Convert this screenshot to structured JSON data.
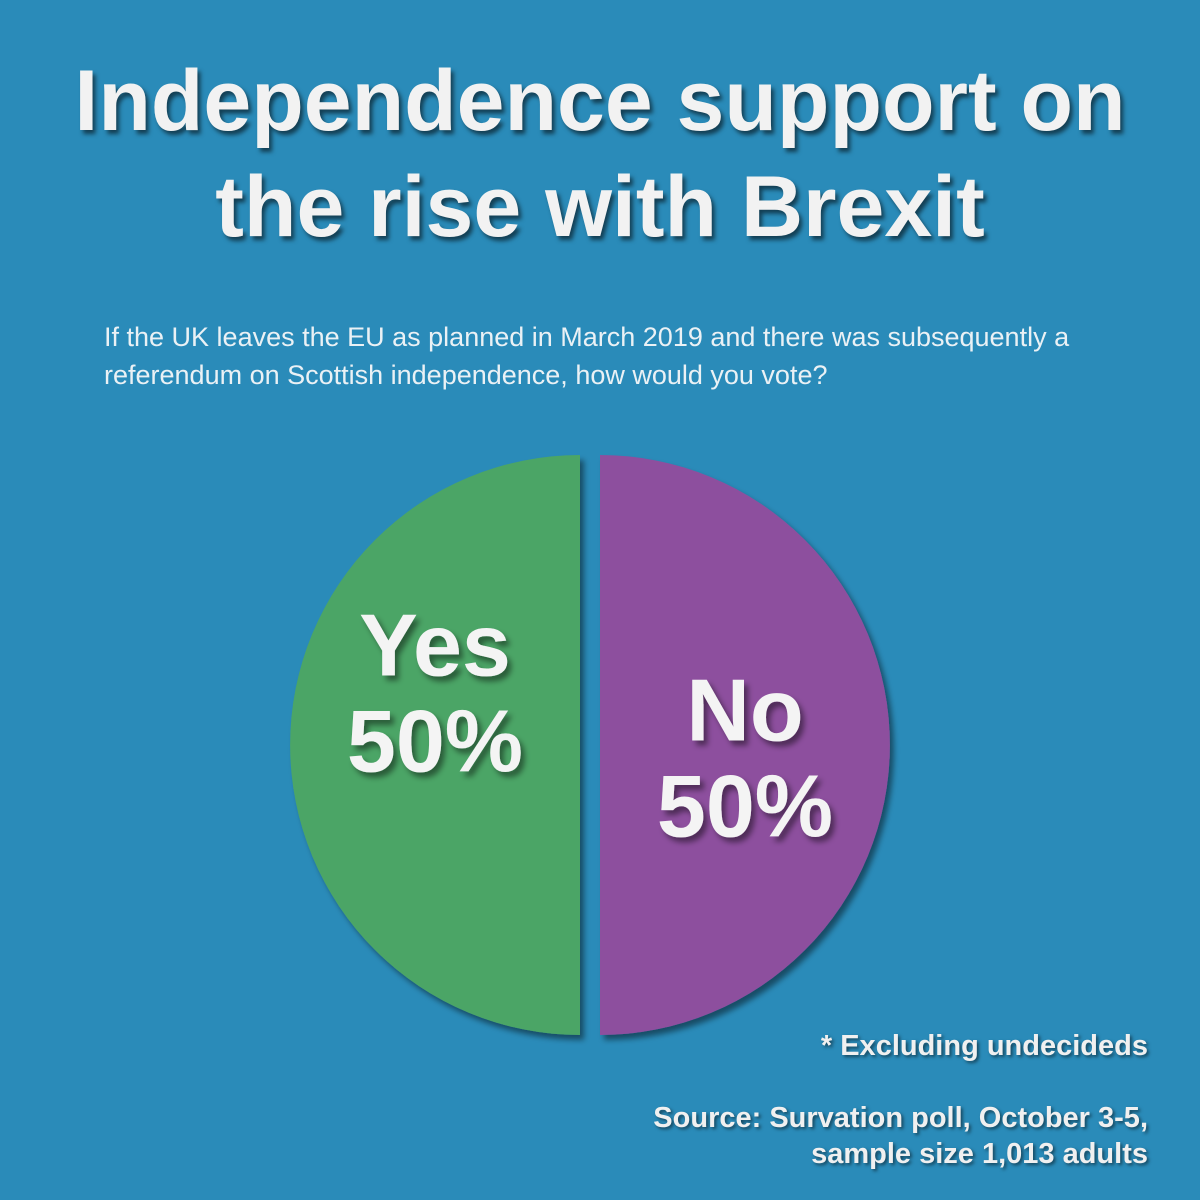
{
  "chart_data": {
    "type": "pie",
    "title": "Independence support on the rise with Brexit",
    "subtitle": "If the UK leaves the EU as planned in March 2019 and there was subsequently a referendum on Scottish independence, how would you vote?",
    "categories": [
      "Yes",
      "No"
    ],
    "values": [
      50,
      50
    ],
    "value_labels": [
      "50%",
      "50%"
    ],
    "colors": [
      "#4ba566",
      "#8d4f9e"
    ],
    "notes": [
      "* Excluding undecideds",
      "Source: Survation poll, October 3-5, sample size 1,013 adults"
    ]
  }
}
